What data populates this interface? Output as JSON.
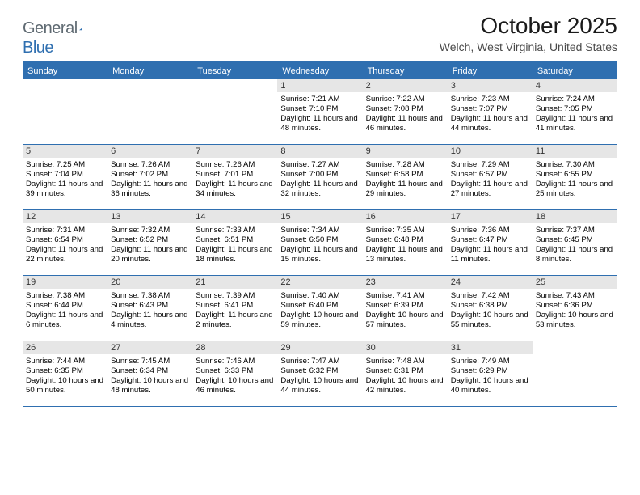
{
  "logo": {
    "text_general": "General",
    "text_blue": "Blue"
  },
  "title": {
    "month": "October 2025",
    "location": "Welch, West Virginia, United States"
  },
  "colors": {
    "brand_blue": "#2f6fb0",
    "logo_gray": "#5f6a72",
    "date_bar_bg": "#e6e6e6",
    "text": "#000000",
    "background": "#ffffff"
  },
  "day_headers": [
    "Sunday",
    "Monday",
    "Tuesday",
    "Wednesday",
    "Thursday",
    "Friday",
    "Saturday"
  ],
  "labels": {
    "sunrise": "Sunrise: ",
    "sunset": "Sunset: ",
    "daylight": "Daylight: "
  },
  "weeks": [
    [
      null,
      null,
      null,
      {
        "date": "1",
        "sunrise": "7:21 AM",
        "sunset": "7:10 PM",
        "daylight": "11 hours and 48 minutes."
      },
      {
        "date": "2",
        "sunrise": "7:22 AM",
        "sunset": "7:08 PM",
        "daylight": "11 hours and 46 minutes."
      },
      {
        "date": "3",
        "sunrise": "7:23 AM",
        "sunset": "7:07 PM",
        "daylight": "11 hours and 44 minutes."
      },
      {
        "date": "4",
        "sunrise": "7:24 AM",
        "sunset": "7:05 PM",
        "daylight": "11 hours and 41 minutes."
      }
    ],
    [
      {
        "date": "5",
        "sunrise": "7:25 AM",
        "sunset": "7:04 PM",
        "daylight": "11 hours and 39 minutes."
      },
      {
        "date": "6",
        "sunrise": "7:26 AM",
        "sunset": "7:02 PM",
        "daylight": "11 hours and 36 minutes."
      },
      {
        "date": "7",
        "sunrise": "7:26 AM",
        "sunset": "7:01 PM",
        "daylight": "11 hours and 34 minutes."
      },
      {
        "date": "8",
        "sunrise": "7:27 AM",
        "sunset": "7:00 PM",
        "daylight": "11 hours and 32 minutes."
      },
      {
        "date": "9",
        "sunrise": "7:28 AM",
        "sunset": "6:58 PM",
        "daylight": "11 hours and 29 minutes."
      },
      {
        "date": "10",
        "sunrise": "7:29 AM",
        "sunset": "6:57 PM",
        "daylight": "11 hours and 27 minutes."
      },
      {
        "date": "11",
        "sunrise": "7:30 AM",
        "sunset": "6:55 PM",
        "daylight": "11 hours and 25 minutes."
      }
    ],
    [
      {
        "date": "12",
        "sunrise": "7:31 AM",
        "sunset": "6:54 PM",
        "daylight": "11 hours and 22 minutes."
      },
      {
        "date": "13",
        "sunrise": "7:32 AM",
        "sunset": "6:52 PM",
        "daylight": "11 hours and 20 minutes."
      },
      {
        "date": "14",
        "sunrise": "7:33 AM",
        "sunset": "6:51 PM",
        "daylight": "11 hours and 18 minutes."
      },
      {
        "date": "15",
        "sunrise": "7:34 AM",
        "sunset": "6:50 PM",
        "daylight": "11 hours and 15 minutes."
      },
      {
        "date": "16",
        "sunrise": "7:35 AM",
        "sunset": "6:48 PM",
        "daylight": "11 hours and 13 minutes."
      },
      {
        "date": "17",
        "sunrise": "7:36 AM",
        "sunset": "6:47 PM",
        "daylight": "11 hours and 11 minutes."
      },
      {
        "date": "18",
        "sunrise": "7:37 AM",
        "sunset": "6:45 PM",
        "daylight": "11 hours and 8 minutes."
      }
    ],
    [
      {
        "date": "19",
        "sunrise": "7:38 AM",
        "sunset": "6:44 PM",
        "daylight": "11 hours and 6 minutes."
      },
      {
        "date": "20",
        "sunrise": "7:38 AM",
        "sunset": "6:43 PM",
        "daylight": "11 hours and 4 minutes."
      },
      {
        "date": "21",
        "sunrise": "7:39 AM",
        "sunset": "6:41 PM",
        "daylight": "11 hours and 2 minutes."
      },
      {
        "date": "22",
        "sunrise": "7:40 AM",
        "sunset": "6:40 PM",
        "daylight": "10 hours and 59 minutes."
      },
      {
        "date": "23",
        "sunrise": "7:41 AM",
        "sunset": "6:39 PM",
        "daylight": "10 hours and 57 minutes."
      },
      {
        "date": "24",
        "sunrise": "7:42 AM",
        "sunset": "6:38 PM",
        "daylight": "10 hours and 55 minutes."
      },
      {
        "date": "25",
        "sunrise": "7:43 AM",
        "sunset": "6:36 PM",
        "daylight": "10 hours and 53 minutes."
      }
    ],
    [
      {
        "date": "26",
        "sunrise": "7:44 AM",
        "sunset": "6:35 PM",
        "daylight": "10 hours and 50 minutes."
      },
      {
        "date": "27",
        "sunrise": "7:45 AM",
        "sunset": "6:34 PM",
        "daylight": "10 hours and 48 minutes."
      },
      {
        "date": "28",
        "sunrise": "7:46 AM",
        "sunset": "6:33 PM",
        "daylight": "10 hours and 46 minutes."
      },
      {
        "date": "29",
        "sunrise": "7:47 AM",
        "sunset": "6:32 PM",
        "daylight": "10 hours and 44 minutes."
      },
      {
        "date": "30",
        "sunrise": "7:48 AM",
        "sunset": "6:31 PM",
        "daylight": "10 hours and 42 minutes."
      },
      {
        "date": "31",
        "sunrise": "7:49 AM",
        "sunset": "6:29 PM",
        "daylight": "10 hours and 40 minutes."
      },
      null
    ]
  ]
}
